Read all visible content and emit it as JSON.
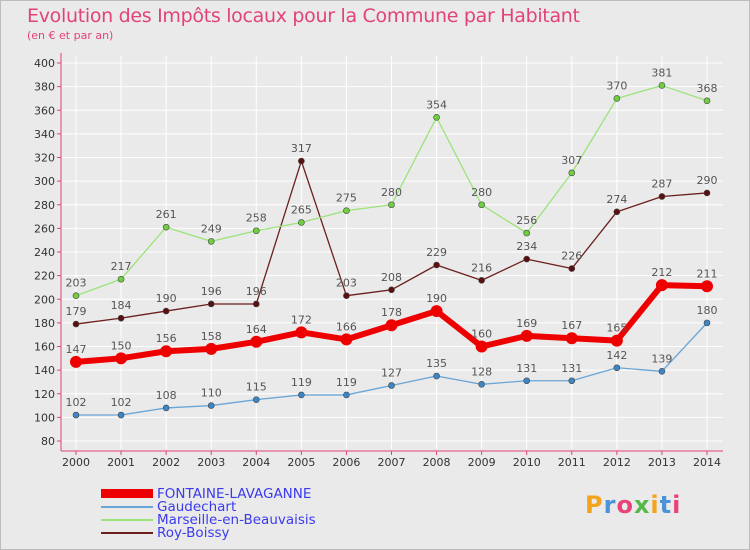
{
  "title": "Evolution des Impôts locaux pour la Commune par Habitant",
  "subtitle": "(en € et par an)",
  "logo_text": "Proxiti",
  "colors": {
    "title": "#e2427a",
    "axis": "#e2427a",
    "label": "#555555",
    "grid": "#ffffff",
    "background": "#eaeaea"
  },
  "chart_data": {
    "type": "line",
    "title": "Evolution des Impôts locaux pour la Commune par Habitant",
    "subtitle": "(en € et par an)",
    "xlabel": "",
    "ylabel": "",
    "x": [
      "2000",
      "2001",
      "2002",
      "2003",
      "2004",
      "2005",
      "2006",
      "2007",
      "2008",
      "2009",
      "2010",
      "2011",
      "2012",
      "2013",
      "2014"
    ],
    "yticks": [
      80,
      100,
      120,
      140,
      160,
      180,
      200,
      220,
      240,
      260,
      280,
      300,
      320,
      340,
      360,
      380,
      400
    ],
    "ylim": [
      80,
      400
    ],
    "grid": true,
    "legend_position": "bottom-left",
    "series": [
      {
        "name": "Roy-Boissy",
        "color": "#6b1f1f",
        "marker": "#5a1010",
        "width": 1.3,
        "radius": 3,
        "values": [
          179,
          184,
          190,
          196,
          196,
          317,
          203,
          208,
          229,
          216,
          234,
          226,
          274,
          287,
          290
        ]
      },
      {
        "name": "Marseille-en-Beauvaisis",
        "color": "#9be37a",
        "marker": "#6fcf3f",
        "width": 1.3,
        "radius": 3,
        "values": [
          203,
          217,
          261,
          249,
          258,
          265,
          275,
          280,
          354,
          280,
          256,
          307,
          370,
          381,
          368
        ]
      },
      {
        "name": "Gaudechart",
        "color": "#6aa5d6",
        "marker": "#3d86c6",
        "width": 1.3,
        "radius": 3,
        "values": [
          102,
          102,
          108,
          110,
          115,
          119,
          119,
          127,
          135,
          128,
          131,
          131,
          142,
          139,
          180
        ]
      },
      {
        "name": "FONTAINE-LAVAGANNE",
        "color": "#ee0000",
        "marker": "#ee0000",
        "width": 6,
        "radius": 6,
        "values": [
          147,
          150,
          156,
          158,
          164,
          172,
          166,
          178,
          190,
          160,
          169,
          167,
          165,
          212,
          211
        ]
      }
    ],
    "legend": [
      {
        "name": "FONTAINE-LAVAGANNE",
        "color": "#ee0000",
        "text_color": "#3a3aee",
        "thick": true
      },
      {
        "name": "Gaudechart",
        "color": "#6aa5d6",
        "text_color": "#3a3aee",
        "thick": false
      },
      {
        "name": "Marseille-en-Beauvaisis",
        "color": "#9be37a",
        "text_color": "#3a3aee",
        "thick": false
      },
      {
        "name": "Roy-Boissy",
        "color": "#6b1f1f",
        "text_color": "#3a3aee",
        "thick": false
      }
    ]
  }
}
